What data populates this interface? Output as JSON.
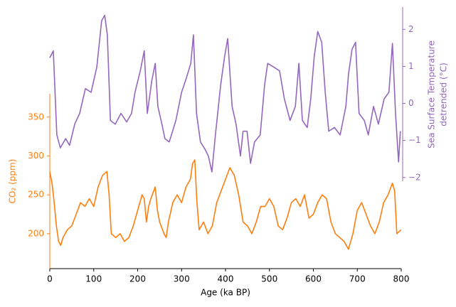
{
  "chart_data": {
    "type": "line",
    "xlabel": "Age (ka BP)",
    "ylabel": "CO₂ (ppm)",
    "y2label": [
      "Sea Surface Temperature",
      "detrended (°C)"
    ],
    "xlim": [
      0,
      800
    ],
    "xticks": [
      0,
      100,
      200,
      300,
      400,
      500,
      600,
      700,
      800
    ],
    "ylim": [
      155,
      380
    ],
    "yticks": [
      200,
      250,
      300,
      350
    ],
    "y2lim": [
      -2.1,
      2.6
    ],
    "y2ticks": [
      {
        "value": -2,
        "label": "−2"
      },
      {
        "value": -1,
        "label": "−1"
      },
      0,
      1,
      2
    ],
    "series": [
      {
        "name": "CO2",
        "color": "#ff7f0e",
        "axis": "y",
        "x": [
          0,
          5,
          10,
          15,
          20,
          25,
          30,
          40,
          50,
          60,
          70,
          80,
          90,
          100,
          110,
          120,
          130,
          135,
          140,
          150,
          160,
          170,
          180,
          190,
          200,
          210,
          215,
          220,
          225,
          230,
          240,
          245,
          250,
          260,
          265,
          270,
          280,
          290,
          300,
          310,
          320,
          325,
          330,
          335,
          340,
          350,
          360,
          370,
          380,
          390,
          400,
          410,
          420,
          430,
          440,
          450,
          460,
          470,
          480,
          490,
          500,
          510,
          520,
          530,
          540,
          550,
          560,
          570,
          580,
          590,
          600,
          610,
          620,
          630,
          640,
          650,
          660,
          670,
          680,
          690,
          700,
          710,
          720,
          730,
          740,
          750,
          760,
          770,
          780,
          785,
          790,
          800
        ],
        "values": [
          280,
          265,
          240,
          210,
          190,
          185,
          195,
          205,
          210,
          225,
          240,
          235,
          245,
          235,
          260,
          275,
          280,
          250,
          200,
          195,
          200,
          190,
          195,
          210,
          230,
          250,
          245,
          215,
          235,
          245,
          260,
          230,
          215,
          200,
          195,
          215,
          240,
          250,
          240,
          260,
          270,
          290,
          295,
          240,
          205,
          215,
          200,
          210,
          240,
          255,
          270,
          285,
          275,
          250,
          215,
          210,
          200,
          215,
          235,
          235,
          245,
          235,
          210,
          205,
          220,
          240,
          245,
          235,
          250,
          220,
          225,
          240,
          250,
          245,
          215,
          200,
          195,
          190,
          180,
          200,
          230,
          240,
          225,
          210,
          200,
          215,
          240,
          250,
          265,
          255,
          200,
          205
        ]
      },
      {
        "name": "SST",
        "color": "#9467bd",
        "axis": "y2",
        "x": [
          0,
          8,
          16,
          24,
          36,
          45,
          57,
          68,
          81,
          94,
          107,
          118,
          125,
          131,
          138,
          149,
          162,
          175,
          186,
          194,
          206,
          215,
          222,
          232,
          240,
          246,
          256,
          262,
          272,
          287,
          300,
          311,
          321,
          327,
          334,
          343,
          353,
          361,
          369,
          377,
          389,
          398,
          405,
          415,
          424,
          434,
          440,
          449,
          457,
          466,
          479,
          489,
          496,
          510,
          523,
          534,
          547,
          559,
          567,
          575,
          586,
          594,
          602,
          610,
          619,
          627,
          635,
          648,
          661,
          674,
          680,
          688,
          696,
          704,
          716,
          725,
          737,
          748,
          761,
          772,
          780,
          787,
          794,
          798
        ],
        "values": [
          1.23,
          1.42,
          -0.85,
          -1.2,
          -0.95,
          -1.13,
          -0.55,
          -0.27,
          0.4,
          0.3,
          0.98,
          2.23,
          2.38,
          1.85,
          -0.46,
          -0.56,
          -0.27,
          -0.5,
          -0.27,
          0.3,
          0.88,
          1.42,
          -0.27,
          0.6,
          1.08,
          -0.08,
          -0.6,
          -0.95,
          -1.04,
          -0.46,
          0.3,
          0.69,
          1.08,
          1.85,
          -0.27,
          -1.04,
          -1.23,
          -1.42,
          -1.85,
          -0.85,
          0.5,
          1.27,
          1.75,
          -0.08,
          -0.56,
          -1.42,
          -0.75,
          -0.75,
          -1.62,
          -1.04,
          -0.85,
          0.5,
          1.08,
          0.98,
          0.88,
          0.12,
          -0.46,
          -0.08,
          1.08,
          -0.46,
          -0.65,
          0.12,
          1.27,
          1.94,
          1.65,
          0.3,
          -0.75,
          -0.65,
          -0.85,
          -0.08,
          0.79,
          1.46,
          1.65,
          -0.27,
          -0.46,
          -0.85,
          -0.08,
          -0.56,
          0.12,
          0.3,
          1.62,
          -0.27,
          -1.58,
          -0.75
        ]
      }
    ]
  }
}
